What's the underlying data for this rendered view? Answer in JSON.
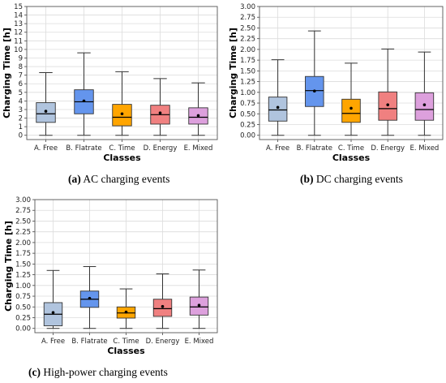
{
  "chart_data": [
    {
      "type": "box",
      "panel_id": "a",
      "caption": {
        "label": "(a)",
        "text": "AC charging events"
      },
      "categories": [
        "A. Free",
        "B. Flatrate",
        "C. Time",
        "D. Energy",
        "E. Mixed"
      ],
      "colors": [
        "#b0c4de",
        "#6495ed",
        "#ffa500",
        "#f08080",
        "#dda0dd"
      ],
      "boxes": [
        {
          "whisker_low": 0.0,
          "q1": 1.5,
          "median": 2.5,
          "q3": 3.8,
          "whisker_high": 7.3,
          "mean": 2.8
        },
        {
          "whisker_low": 0.0,
          "q1": 2.5,
          "median": 3.9,
          "q3": 5.3,
          "whisker_high": 9.6,
          "mean": 4.0
        },
        {
          "whisker_low": 0.0,
          "q1": 1.1,
          "median": 2.1,
          "q3": 3.6,
          "whisker_high": 7.4,
          "mean": 2.5
        },
        {
          "whisker_low": 0.0,
          "q1": 1.3,
          "median": 2.4,
          "q3": 3.5,
          "whisker_high": 6.6,
          "mean": 2.6
        },
        {
          "whisker_low": 0.0,
          "q1": 1.3,
          "median": 2.1,
          "q3": 3.2,
          "whisker_high": 6.1,
          "mean": 2.3
        }
      ],
      "xlabel": "Classes",
      "ylabel": "Charging Time [h]",
      "ylim": [
        -0.5,
        15
      ],
      "yticks": [
        0,
        1,
        2,
        3,
        4,
        5,
        6,
        7,
        8,
        9,
        10,
        11,
        12,
        13,
        14,
        15
      ],
      "ytick_labels": [
        "0",
        "1",
        "2",
        "3",
        "4",
        "5",
        "6",
        "7",
        "8",
        "9",
        "10",
        "11",
        "12",
        "13",
        "14",
        "15"
      ],
      "grid": true
    },
    {
      "type": "box",
      "panel_id": "b",
      "caption": {
        "label": "(b)",
        "text": "DC charging events"
      },
      "categories": [
        "A. Free",
        "B. Flatrate",
        "C. Time",
        "D. Energy",
        "E. Mixed"
      ],
      "colors": [
        "#b0c4de",
        "#6495ed",
        "#ffa500",
        "#f08080",
        "#dda0dd"
      ],
      "boxes": [
        {
          "whisker_low": 0.0,
          "q1": 0.33,
          "median": 0.59,
          "q3": 0.89,
          "whisker_high": 1.76,
          "mean": 0.65
        },
        {
          "whisker_low": 0.0,
          "q1": 0.67,
          "median": 1.04,
          "q3": 1.37,
          "whisker_high": 2.43,
          "mean": 1.03
        },
        {
          "whisker_low": 0.0,
          "q1": 0.3,
          "median": 0.51,
          "q3": 0.84,
          "whisker_high": 1.68,
          "mean": 0.63
        },
        {
          "whisker_low": 0.0,
          "q1": 0.35,
          "median": 0.62,
          "q3": 1.01,
          "whisker_high": 2.01,
          "mean": 0.71
        },
        {
          "whisker_low": 0.0,
          "q1": 0.35,
          "median": 0.6,
          "q3": 0.99,
          "whisker_high": 1.94,
          "mean": 0.71
        }
      ],
      "xlabel": "Classes",
      "ylabel": "Charging Time [h]",
      "ylim": [
        -0.1,
        3.0
      ],
      "yticks": [
        0,
        0.25,
        0.5,
        0.75,
        1.0,
        1.25,
        1.5,
        1.75,
        2.0,
        2.25,
        2.5,
        2.75,
        3.0
      ],
      "ytick_labels": [
        "0.00",
        "0.25",
        "0.50",
        "0.75",
        "1.00",
        "1.25",
        "1.50",
        "1.75",
        "2.00",
        "2.25",
        "2.50",
        "2.75",
        "3.00"
      ],
      "grid": true
    },
    {
      "type": "box",
      "panel_id": "c",
      "caption": {
        "label": "(c)",
        "text": "High-power charging events"
      },
      "categories": [
        "A. Free",
        "B. Flatrate",
        "C. Time",
        "D. Energy",
        "E. Mixed"
      ],
      "colors": [
        "#b0c4de",
        "#6495ed",
        "#ffa500",
        "#f08080",
        "#dda0dd"
      ],
      "boxes": [
        {
          "whisker_low": 0.0,
          "q1": 0.06,
          "median": 0.33,
          "q3": 0.6,
          "whisker_high": 1.35,
          "mean": 0.37
        },
        {
          "whisker_low": 0.0,
          "q1": 0.49,
          "median": 0.68,
          "q3": 0.87,
          "whisker_high": 1.44,
          "mean": 0.7
        },
        {
          "whisker_low": 0.0,
          "q1": 0.24,
          "median": 0.36,
          "q3": 0.5,
          "whisker_high": 0.92,
          "mean": 0.38
        },
        {
          "whisker_low": 0.0,
          "q1": 0.28,
          "median": 0.46,
          "q3": 0.68,
          "whisker_high": 1.27,
          "mean": 0.51
        },
        {
          "whisker_low": 0.0,
          "q1": 0.31,
          "median": 0.5,
          "q3": 0.73,
          "whisker_high": 1.36,
          "mean": 0.54
        }
      ],
      "xlabel": "Classes",
      "ylabel": "Charging Time [h]",
      "ylim": [
        -0.1,
        3.0
      ],
      "yticks": [
        0,
        0.25,
        0.5,
        0.75,
        1.0,
        1.25,
        1.5,
        1.75,
        2.0,
        2.25,
        2.5,
        2.75,
        3.0
      ],
      "ytick_labels": [
        "0.00",
        "0.25",
        "0.50",
        "0.75",
        "1.00",
        "1.25",
        "1.50",
        "1.75",
        "2.00",
        "2.25",
        "2.50",
        "2.75",
        "3.00"
      ],
      "grid": true
    }
  ]
}
